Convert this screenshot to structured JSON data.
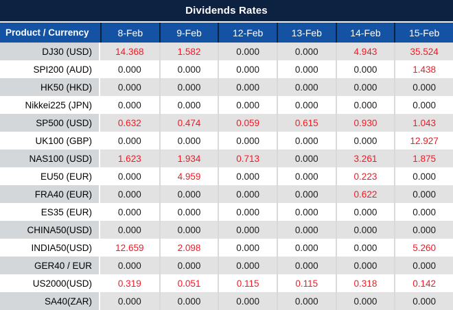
{
  "title": "Dividends Rates",
  "colors": {
    "title_bar_bg": "#0d2140",
    "header_bg": "#1453a4",
    "header_text": "#ffffff",
    "row_gray_label": "#d4d7da",
    "row_gray_value": "#e2e2e2",
    "row_white": "#ffffff",
    "value_red": "#fa1520",
    "value_black": "#1a1a1a"
  },
  "chart_data": {
    "type": "table",
    "title": "Dividends Rates",
    "columns": [
      "Product / Currency",
      "8-Feb",
      "9-Feb",
      "12-Feb",
      "13-Feb",
      "14-Feb",
      "15-Feb"
    ],
    "rows": [
      {
        "label": "DJ30 (USD)",
        "values": [
          "14.368",
          "1.582",
          "0.000",
          "0.000",
          "4.943",
          "35.524"
        ],
        "red": [
          true,
          true,
          false,
          false,
          true,
          true
        ]
      },
      {
        "label": "SPI200 (AUD)",
        "values": [
          "0.000",
          "0.000",
          "0.000",
          "0.000",
          "0.000",
          "1.438"
        ],
        "red": [
          false,
          false,
          false,
          false,
          false,
          true
        ]
      },
      {
        "label": "HK50 (HKD)",
        "values": [
          "0.000",
          "0.000",
          "0.000",
          "0.000",
          "0.000",
          "0.000"
        ],
        "red": [
          false,
          false,
          false,
          false,
          false,
          false
        ]
      },
      {
        "label": "Nikkei225 (JPN)",
        "values": [
          "0.000",
          "0.000",
          "0.000",
          "0.000",
          "0.000",
          "0.000"
        ],
        "red": [
          false,
          false,
          false,
          false,
          false,
          false
        ]
      },
      {
        "label": "SP500 (USD)",
        "values": [
          "0.632",
          "0.474",
          "0.059",
          "0.615",
          "0.930",
          "1.043"
        ],
        "red": [
          true,
          true,
          true,
          true,
          true,
          true
        ]
      },
      {
        "label": "UK100 (GBP)",
        "values": [
          "0.000",
          "0.000",
          "0.000",
          "0.000",
          "0.000",
          "12.927"
        ],
        "red": [
          false,
          false,
          false,
          false,
          false,
          true
        ]
      },
      {
        "label": "NAS100 (USD)",
        "values": [
          "1.623",
          "1.934",
          "0.713",
          "0.000",
          "3.261",
          "1.875"
        ],
        "red": [
          true,
          true,
          true,
          false,
          true,
          true
        ]
      },
      {
        "label": "EU50 (EUR)",
        "values": [
          "0.000",
          "4.959",
          "0.000",
          "0.000",
          "0.223",
          "0.000"
        ],
        "red": [
          false,
          true,
          false,
          false,
          true,
          false
        ]
      },
      {
        "label": "FRA40 (EUR)",
        "values": [
          "0.000",
          "0.000",
          "0.000",
          "0.000",
          "0.622",
          "0.000"
        ],
        "red": [
          false,
          false,
          false,
          false,
          true,
          false
        ]
      },
      {
        "label": "ES35 (EUR)",
        "values": [
          "0.000",
          "0.000",
          "0.000",
          "0.000",
          "0.000",
          "0.000"
        ],
        "red": [
          false,
          false,
          false,
          false,
          false,
          false
        ]
      },
      {
        "label": "CHINA50(USD)",
        "values": [
          "0.000",
          "0.000",
          "0.000",
          "0.000",
          "0.000",
          "0.000"
        ],
        "red": [
          false,
          false,
          false,
          false,
          false,
          false
        ]
      },
      {
        "label": "INDIA50(USD)",
        "values": [
          "12.659",
          "2.098",
          "0.000",
          "0.000",
          "0.000",
          "5.260"
        ],
        "red": [
          true,
          true,
          false,
          false,
          false,
          true
        ]
      },
      {
        "label": "GER40 / EUR",
        "values": [
          "0.000",
          "0.000",
          "0.000",
          "0.000",
          "0.000",
          "0.000"
        ],
        "red": [
          false,
          false,
          false,
          false,
          false,
          false
        ]
      },
      {
        "label": "US2000(USD)",
        "values": [
          "0.319",
          "0.051",
          "0.115",
          "0.115",
          "0.318",
          "0.142"
        ],
        "red": [
          true,
          true,
          true,
          true,
          true,
          true
        ]
      },
      {
        "label": "SA40(ZAR)",
        "values": [
          "0.000",
          "0.000",
          "0.000",
          "0.000",
          "0.000",
          "0.000"
        ],
        "red": [
          false,
          false,
          false,
          false,
          false,
          false
        ]
      }
    ]
  }
}
